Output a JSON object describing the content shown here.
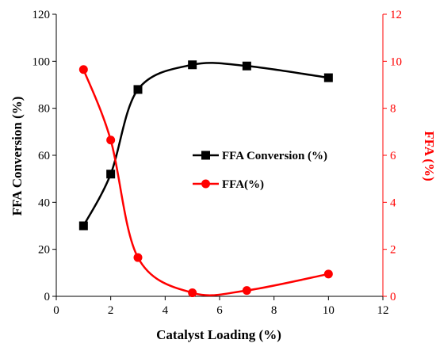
{
  "chart_data": {
    "type": "line",
    "title": "",
    "xlabel": "Catalyst Loading (%)",
    "ylabel_left": "FFA Conversion (%)",
    "ylabel_right": "FFA (%)",
    "xlim": [
      0,
      12
    ],
    "ylim_left": [
      0,
      120
    ],
    "ylim_right": [
      0,
      12
    ],
    "x_ticks": [
      "0",
      "2",
      "4",
      "6",
      "8",
      "10",
      "12"
    ],
    "y_left_ticks": [
      "0",
      "20",
      "40",
      "60",
      "80",
      "100",
      "120"
    ],
    "y_right_ticks": [
      "0",
      "2",
      "4",
      "6",
      "8",
      "10",
      "12"
    ],
    "grid": false,
    "legend_position": "center-right",
    "series": [
      {
        "name": "FFA Conversion (%)",
        "axis": "left",
        "color": "#000000",
        "marker": "square",
        "x": [
          1,
          2,
          3,
          5,
          7,
          10
        ],
        "y": [
          30,
          52,
          88,
          98.5,
          98,
          93
        ]
      },
      {
        "name": "FFA(%)",
        "axis": "right",
        "color": "#ff0000",
        "marker": "circle",
        "x": [
          1,
          2,
          3,
          5,
          7,
          10
        ],
        "y": [
          9.65,
          6.65,
          1.65,
          0.15,
          0.25,
          0.95
        ]
      }
    ]
  }
}
